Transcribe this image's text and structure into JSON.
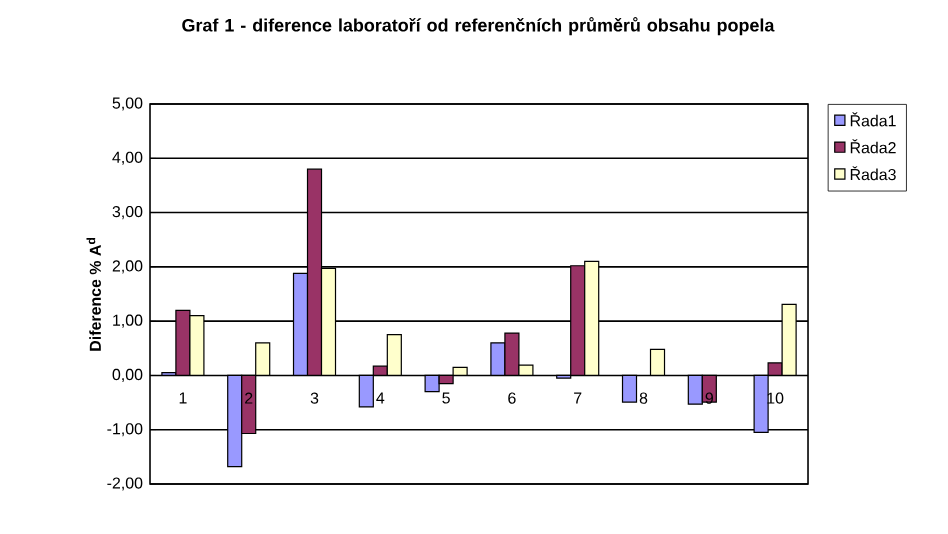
{
  "chart_data": {
    "type": "bar",
    "title": "**Graf 1 - diference laboratoří od referenčních průměrů obsahu popela**",
    "ylabel": "**Diference % A$^{d}$**",
    "categories": [
      "1",
      "2",
      "3",
      "4",
      "5",
      "6",
      "7",
      "8",
      "9",
      "10"
    ],
    "series": [
      {
        "name": "Řada1",
        "color": "#9999ff",
        "values": [
          0.05,
          -1.68,
          1.88,
          -0.58,
          -0.3,
          0.6,
          -0.05,
          -0.49,
          -0.53,
          -1.05
        ]
      },
      {
        "name": "Řada2",
        "color": "#993366",
        "values": [
          1.2,
          -1.07,
          3.8,
          0.17,
          -0.15,
          0.78,
          2.02,
          null,
          -0.49,
          0.23
        ]
      },
      {
        "name": "Řada3",
        "color": "#ffffcc",
        "values": [
          1.1,
          0.6,
          1.97,
          0.75,
          0.15,
          0.19,
          2.1,
          0.48,
          null,
          1.31
        ]
      }
    ],
    "ylim": [
      -2,
      5
    ],
    "yticks": [
      {
        "value": -2,
        "label": "-2,00"
      },
      {
        "value": -1,
        "label": "-1,00"
      },
      {
        "value": 0,
        "label": "0,00"
      },
      {
        "value": 1,
        "label": "1,00"
      },
      {
        "value": 2,
        "label": "2,00"
      },
      {
        "value": 3,
        "label": "3,00"
      },
      {
        "value": 4,
        "label": "4,00"
      },
      {
        "value": 5,
        "label": "5,00"
      }
    ],
    "grid": true,
    "legend": "top right"
  }
}
